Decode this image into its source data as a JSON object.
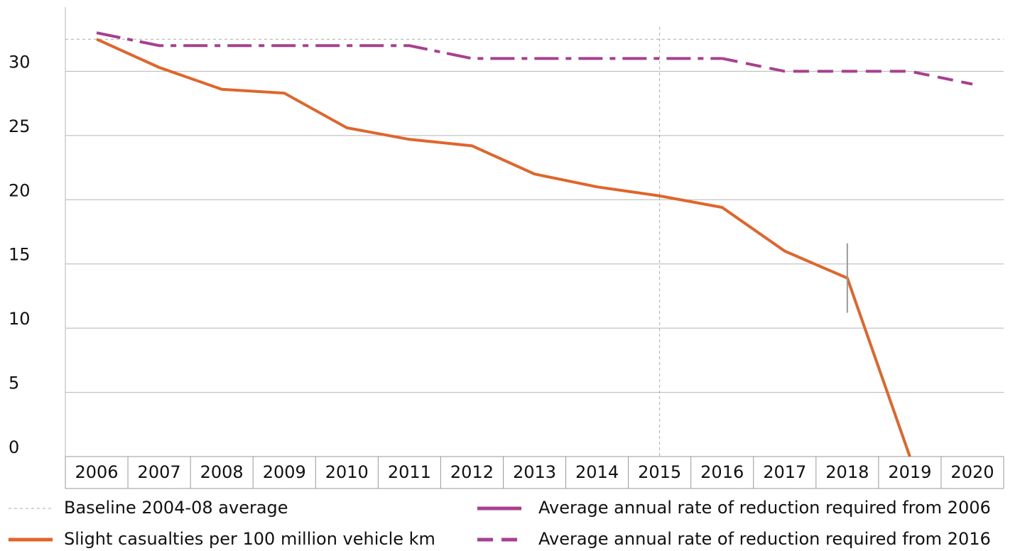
{
  "chart_data": {
    "type": "line",
    "categories": [
      "2006",
      "2007",
      "2008",
      "2009",
      "2010",
      "2011",
      "2012",
      "2013",
      "2014",
      "2015",
      "2016",
      "2017",
      "2018",
      "2019",
      "2020"
    ],
    "series": [
      {
        "name": "Slight casualties per 100 million vehicle km",
        "color": "#e0652a",
        "style": "solid",
        "values": [
          32.5,
          30.3,
          28.6,
          28.3,
          25.6,
          24.7,
          24.2,
          22.0,
          21.0,
          20.3,
          19.4,
          16.0,
          13.9,
          0,
          null
        ],
        "errors": [
          null,
          null,
          null,
          null,
          null,
          null,
          null,
          null,
          null,
          null,
          null,
          null,
          2.7,
          null,
          null
        ]
      },
      {
        "name": "Average annual rate of reduction required from 2006",
        "color": "#a8408f",
        "style": "dash-dot",
        "values": [
          33,
          32,
          32,
          32,
          32,
          32,
          31,
          31,
          31,
          31,
          31,
          null,
          null,
          null,
          null
        ]
      },
      {
        "name": "Average annual rate of reduction required from 2016",
        "color": "#a8408f",
        "style": "dashed",
        "values": [
          null,
          null,
          null,
          null,
          null,
          null,
          null,
          null,
          null,
          null,
          31,
          30,
          30,
          30,
          29
        ]
      }
    ],
    "baseline": {
      "name": "Baseline 2004-08 average",
      "value": 32.5,
      "color": "#aaaaaa"
    },
    "reference_x": "2015",
    "ylim": [
      0,
      35
    ],
    "yticks": [
      0,
      5,
      10,
      15,
      20,
      25,
      30
    ],
    "grid": true
  }
}
